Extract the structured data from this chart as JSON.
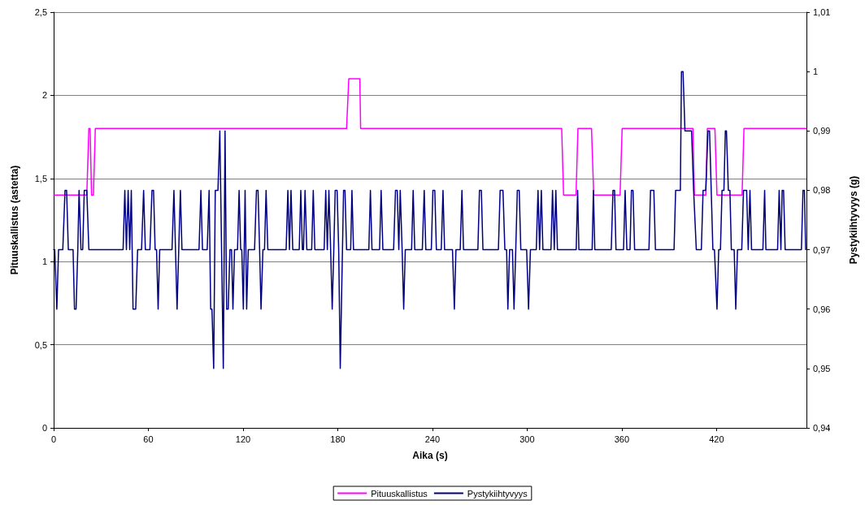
{
  "chart_data": {
    "type": "line",
    "xlabel": "Aika (s)",
    "ylabel": "Pituuskallistus (astetta)",
    "y2label": "Pystykiihtyvyys (g)",
    "xlim": [
      0,
      477
    ],
    "xticks": [
      0,
      60,
      120,
      180,
      240,
      300,
      360,
      420
    ],
    "ylim": [
      0,
      2.5
    ],
    "yticks": [
      0,
      {
        "value": 0.5,
        "label": "0,5"
      },
      1,
      {
        "value": 1.5,
        "label": "1,5"
      },
      2,
      {
        "value": 2.5,
        "label": "2,5"
      }
    ],
    "y2lim": [
      0.94,
      1.01
    ],
    "y2ticks": [
      {
        "value": 0.94,
        "label": "0,94"
      },
      {
        "value": 0.95,
        "label": "0,95"
      },
      {
        "value": 0.96,
        "label": "0,96"
      },
      {
        "value": 0.97,
        "label": "0,97"
      },
      {
        "value": 0.98,
        "label": "0,98"
      },
      {
        "value": 0.99,
        "label": "0,99"
      },
      1,
      {
        "value": 1.01,
        "label": "1,01"
      }
    ],
    "grid": "y",
    "legend": "bottom",
    "marker": "none",
    "line_style": "solid",
    "series": [
      {
        "name": "Pituuskallistus",
        "color": "#ff00ff",
        "x": [
          0,
          21,
          22.3,
          23.1,
          24,
          25.2,
          26.4,
          185.6,
          187,
          194,
          194.5,
          321.9,
          323.1,
          331,
          332.2,
          340.8,
          342.2,
          358.9,
          360.2,
          405.1,
          406,
          413.2,
          414.2,
          419,
          420.3,
          436.2,
          437.4,
          477
        ],
        "values": [
          1.4,
          1.4,
          1.8,
          1.8,
          1.4,
          1.4,
          1.8,
          1.8,
          2.1,
          2.1,
          1.8,
          1.8,
          1.4,
          1.4,
          1.8,
          1.8,
          1.4,
          1.4,
          1.8,
          1.8,
          1.4,
          1.4,
          1.8,
          1.8,
          1.4,
          1.4,
          1.8,
          1.8
        ]
      },
      {
        "name": "Pystykiihtyvyys",
        "color": "#000080",
        "axis": "y2",
        "x": [
          0,
          0.7,
          2,
          3.1,
          5.8,
          7.2,
          8.2,
          9.3,
          12.3,
          13.2,
          14.2,
          15.3,
          16.1,
          17.3,
          18.4,
          19.4,
          21,
          22.3,
          44,
          45.1,
          46.1,
          47.2,
          48.2,
          49.2,
          50.3,
          52,
          53.2,
          55.7,
          57,
          58.1,
          61,
          62.3,
          63.3,
          64.3,
          65.2,
          66.2,
          67.2,
          75,
          76.2,
          78.2,
          80.3,
          81.3,
          92.1,
          93.3,
          94.3,
          97.3,
          98.5,
          99.5,
          100.3,
          101.4,
          102.4,
          104.1,
          105.3,
          107.5,
          108.6,
          109.6,
          110.6,
          111.7,
          112.7,
          113.6,
          114.6,
          116.5,
          117.5,
          118.5,
          119.2,
          120.2,
          121.3,
          122.3,
          123.3,
          127.3,
          128.5,
          129.5,
          130.5,
          131.4,
          132.6,
          133.6,
          134.6,
          135.7,
          147.3,
          148.4,
          149.4,
          150.4,
          151.5,
          155.6,
          156.6,
          157.6,
          158.3,
          159.3,
          160.4,
          163.5,
          164.5,
          165.5,
          171.4,
          172.4,
          173.4,
          174.4,
          175.5,
          176.5,
          177.5,
          178.4,
          179.6,
          180.6,
          181.6,
          183.7,
          184.6,
          185.6,
          188.2,
          189,
          190,
          199.7,
          200.7,
          201.7,
          206.5,
          207.5,
          208.6,
          215.4,
          216.6,
          217.7,
          218.7,
          219.6,
          220.8,
          221.8,
          222.8,
          226.8,
          227.8,
          228.8,
          233.6,
          234.8,
          235.8,
          239.3,
          240.3,
          241.5,
          242.5,
          245.6,
          246.7,
          247.7,
          252.7,
          253.9,
          254.9,
          257.6,
          258.7,
          259.7,
          268.8,
          269.8,
          271,
          272,
          281.8,
          282.9,
          284.7,
          285.9,
          287,
          287.8,
          288.9,
          290.7,
          291.7,
          292.8,
          293.8,
          295,
          296,
          299.7,
          300.9,
          302.1,
          305.8,
          306.9,
          307.9,
          309,
          310,
          315.1,
          316.1,
          317.2,
          318.2,
          319.2,
          331.1,
          332,
          332.8,
          341.2,
          342,
          342.9,
          353.3,
          354.4,
          355.4,
          356.3,
          361.1,
          362.1,
          363.2,
          365.2,
          366.1,
          367.1,
          368.1,
          377.2,
          378.2,
          380.3,
          381.3,
          393.1,
          394.1,
          397.1,
          397.8,
          398.8,
          400,
          404.2,
          405.5,
          407.2,
          410.4,
          411.5,
          413.2,
          414.6,
          415.6,
          417.7,
          418.7,
          420.3,
          421.4,
          422.5,
          423.5,
          424.7,
          425.6,
          426.3,
          427.5,
          428.5,
          429.4,
          431.2,
          432.2,
          433.3,
          436,
          437.1,
          439.1,
          440.1,
          441.2,
          442.2,
          449.4,
          450.5,
          451.3,
          458.7,
          459.7,
          460.8,
          461.6,
          462.5,
          463.5,
          473.8,
          474.8,
          475.7,
          476.5
        ],
        "values": [
          0.97,
          0.97,
          0.96,
          0.97,
          0.97,
          0.98,
          0.98,
          0.97,
          0.97,
          0.96,
          0.96,
          0.97,
          0.98,
          0.97,
          0.97,
          0.98,
          0.98,
          0.97,
          0.97,
          0.98,
          0.97,
          0.98,
          0.97,
          0.98,
          0.96,
          0.96,
          0.97,
          0.97,
          0.98,
          0.97,
          0.97,
          0.98,
          0.98,
          0.97,
          0.97,
          0.96,
          0.97,
          0.97,
          0.98,
          0.96,
          0.98,
          0.97,
          0.97,
          0.98,
          0.97,
          0.97,
          0.98,
          0.96,
          0.96,
          0.95,
          0.98,
          0.98,
          0.99,
          0.95,
          0.99,
          0.96,
          0.96,
          0.97,
          0.97,
          0.96,
          0.97,
          0.97,
          0.98,
          0.97,
          0.97,
          0.96,
          0.98,
          0.96,
          0.97,
          0.97,
          0.98,
          0.98,
          0.97,
          0.96,
          0.97,
          0.97,
          0.98,
          0.97,
          0.97,
          0.98,
          0.97,
          0.98,
          0.97,
          0.97,
          0.98,
          0.97,
          0.97,
          0.98,
          0.97,
          0.97,
          0.98,
          0.97,
          0.97,
          0.98,
          0.97,
          0.98,
          0.97,
          0.96,
          0.97,
          0.98,
          0.98,
          0.97,
          0.95,
          0.98,
          0.98,
          0.97,
          0.97,
          0.98,
          0.97,
          0.97,
          0.98,
          0.97,
          0.97,
          0.98,
          0.97,
          0.97,
          0.98,
          0.98,
          0.97,
          0.98,
          0.97,
          0.96,
          0.97,
          0.97,
          0.98,
          0.97,
          0.97,
          0.98,
          0.97,
          0.97,
          0.98,
          0.98,
          0.97,
          0.97,
          0.98,
          0.97,
          0.97,
          0.96,
          0.97,
          0.97,
          0.98,
          0.97,
          0.97,
          0.98,
          0.98,
          0.97,
          0.97,
          0.98,
          0.98,
          0.97,
          0.97,
          0.96,
          0.97,
          0.97,
          0.96,
          0.97,
          0.98,
          0.98,
          0.97,
          0.97,
          0.96,
          0.97,
          0.97,
          0.98,
          0.97,
          0.98,
          0.97,
          0.97,
          0.98,
          0.97,
          0.98,
          0.97,
          0.97,
          0.98,
          0.97,
          0.97,
          0.98,
          0.97,
          0.97,
          0.98,
          0.98,
          0.97,
          0.97,
          0.98,
          0.97,
          0.97,
          0.98,
          0.98,
          0.97,
          0.97,
          0.98,
          0.98,
          0.97,
          0.97,
          0.98,
          0.98,
          1.0,
          1.0,
          0.99,
          0.99,
          0.98,
          0.97,
          0.97,
          0.98,
          0.98,
          0.99,
          0.99,
          0.97,
          0.97,
          0.96,
          0.97,
          0.97,
          0.98,
          0.98,
          0.99,
          0.99,
          0.98,
          0.98,
          0.97,
          0.97,
          0.96,
          0.97,
          0.97,
          0.98,
          0.98,
          0.97,
          0.98,
          0.97,
          0.97,
          0.98,
          0.97,
          0.97,
          0.98,
          0.97,
          0.98,
          0.98,
          0.97,
          0.97,
          0.98,
          0.98,
          0.97
        ]
      }
    ]
  }
}
